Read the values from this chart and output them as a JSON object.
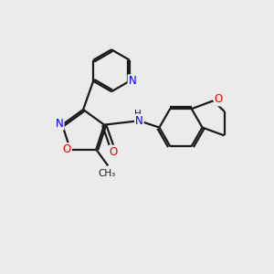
{
  "bg_color": "#ebebeb",
  "bond_color": "#1a1a1a",
  "N_color": "#0000ee",
  "O_color": "#dd0000",
  "line_width": 1.6,
  "dbo": 0.065,
  "figsize": [
    3.0,
    3.0
  ],
  "dpi": 100,
  "xlim": [
    0,
    10
  ],
  "ylim": [
    0,
    10
  ]
}
